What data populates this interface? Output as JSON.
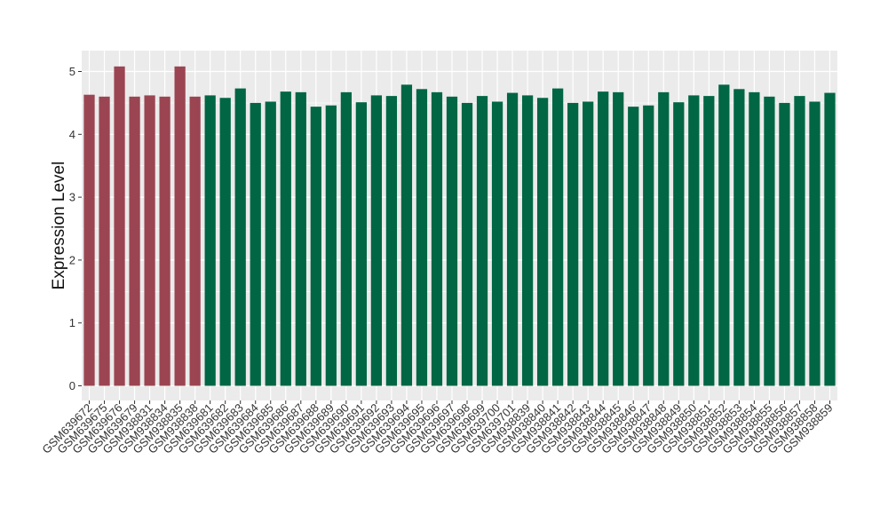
{
  "chart_data": {
    "type": "bar",
    "title": "",
    "xlabel": "",
    "ylabel": "Expression Level",
    "ylim": [
      0,
      5.2
    ],
    "yticks": [
      0,
      1,
      2,
      3,
      4,
      5
    ],
    "grid": true,
    "legend": "none",
    "colors": {
      "group_a": "#9b4552",
      "group_b": "#006644",
      "panel": "#ebebeb",
      "grid": "#ffffff"
    },
    "bars": [
      {
        "label": "GSM639672",
        "value": 4.63,
        "group": "group_a"
      },
      {
        "label": "GSM639675",
        "value": 4.6,
        "group": "group_a"
      },
      {
        "label": "GSM639676",
        "value": 5.08,
        "group": "group_a"
      },
      {
        "label": "GSM639679",
        "value": 4.6,
        "group": "group_a"
      },
      {
        "label": "GSM938831",
        "value": 4.62,
        "group": "group_a"
      },
      {
        "label": "GSM938834",
        "value": 4.6,
        "group": "group_a"
      },
      {
        "label": "GSM938835",
        "value": 5.08,
        "group": "group_a"
      },
      {
        "label": "GSM938838",
        "value": 4.6,
        "group": "group_a"
      },
      {
        "label": "GSM639681",
        "value": 4.62,
        "group": "group_b"
      },
      {
        "label": "GSM639682",
        "value": 4.58,
        "group": "group_b"
      },
      {
        "label": "GSM639683",
        "value": 4.73,
        "group": "group_b"
      },
      {
        "label": "GSM639684",
        "value": 4.5,
        "group": "group_b"
      },
      {
        "label": "GSM639685",
        "value": 4.52,
        "group": "group_b"
      },
      {
        "label": "GSM639686",
        "value": 4.68,
        "group": "group_b"
      },
      {
        "label": "GSM639687",
        "value": 4.67,
        "group": "group_b"
      },
      {
        "label": "GSM639688",
        "value": 4.44,
        "group": "group_b"
      },
      {
        "label": "GSM639689",
        "value": 4.46,
        "group": "group_b"
      },
      {
        "label": "GSM639690",
        "value": 4.67,
        "group": "group_b"
      },
      {
        "label": "GSM639691",
        "value": 4.51,
        "group": "group_b"
      },
      {
        "label": "GSM639692",
        "value": 4.62,
        "group": "group_b"
      },
      {
        "label": "GSM639693",
        "value": 4.61,
        "group": "group_b"
      },
      {
        "label": "GSM639694",
        "value": 4.79,
        "group": "group_b"
      },
      {
        "label": "GSM639695",
        "value": 4.72,
        "group": "group_b"
      },
      {
        "label": "GSM639696",
        "value": 4.67,
        "group": "group_b"
      },
      {
        "label": "GSM639697",
        "value": 4.6,
        "group": "group_b"
      },
      {
        "label": "GSM639698",
        "value": 4.5,
        "group": "group_b"
      },
      {
        "label": "GSM639699",
        "value": 4.61,
        "group": "group_b"
      },
      {
        "label": "GSM639700",
        "value": 4.52,
        "group": "group_b"
      },
      {
        "label": "GSM639701",
        "value": 4.66,
        "group": "group_b"
      },
      {
        "label": "GSM938839",
        "value": 4.62,
        "group": "group_b"
      },
      {
        "label": "GSM938840",
        "value": 4.58,
        "group": "group_b"
      },
      {
        "label": "GSM938841",
        "value": 4.73,
        "group": "group_b"
      },
      {
        "label": "GSM938842",
        "value": 4.5,
        "group": "group_b"
      },
      {
        "label": "GSM938843",
        "value": 4.52,
        "group": "group_b"
      },
      {
        "label": "GSM938844",
        "value": 4.68,
        "group": "group_b"
      },
      {
        "label": "GSM938845",
        "value": 4.67,
        "group": "group_b"
      },
      {
        "label": "GSM938846",
        "value": 4.44,
        "group": "group_b"
      },
      {
        "label": "GSM938847",
        "value": 4.46,
        "group": "group_b"
      },
      {
        "label": "GSM938848",
        "value": 4.67,
        "group": "group_b"
      },
      {
        "label": "GSM938849",
        "value": 4.51,
        "group": "group_b"
      },
      {
        "label": "GSM938850",
        "value": 4.62,
        "group": "group_b"
      },
      {
        "label": "GSM938851",
        "value": 4.61,
        "group": "group_b"
      },
      {
        "label": "GSM938852",
        "value": 4.79,
        "group": "group_b"
      },
      {
        "label": "GSM938853",
        "value": 4.72,
        "group": "group_b"
      },
      {
        "label": "GSM938854",
        "value": 4.67,
        "group": "group_b"
      },
      {
        "label": "GSM938855",
        "value": 4.6,
        "group": "group_b"
      },
      {
        "label": "GSM938856",
        "value": 4.5,
        "group": "group_b"
      },
      {
        "label": "GSM938857",
        "value": 4.61,
        "group": "group_b"
      },
      {
        "label": "GSM938858",
        "value": 4.52,
        "group": "group_b"
      },
      {
        "label": "GSM938859",
        "value": 4.66,
        "group": "group_b"
      }
    ]
  }
}
